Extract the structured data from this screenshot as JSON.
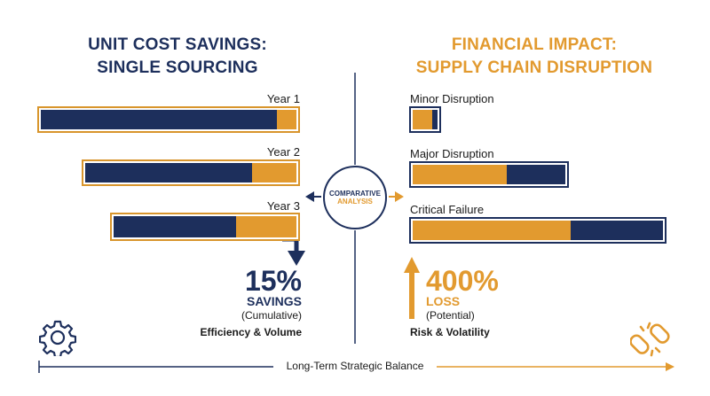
{
  "left": {
    "title_line1": "UNIT COST SAVINGS:",
    "title_line2": "SINGLE SOURCING",
    "bars": [
      {
        "label": "Year 1",
        "navy_fraction": 0.91
      },
      {
        "label": "Year 2",
        "navy_fraction": 0.78
      },
      {
        "label": "Year 3",
        "navy_fraction": 0.65
      }
    ],
    "stat_value": "15%",
    "stat_word": "SAVINGS",
    "stat_note": "(Cumulative)",
    "tagline": "Efficiency & Volume",
    "icon": "gear-icon",
    "color": "#1d2f5c"
  },
  "right": {
    "title_line1": "FINANCIAL IMPACT:",
    "title_line2": "SUPPLY CHAIN DISRUPTION",
    "bars": [
      {
        "label": "Minor Disruption",
        "orange_fraction": 0.7
      },
      {
        "label": "Major Disruption",
        "orange_fraction": 0.61
      },
      {
        "label": "Critical Failure",
        "orange_fraction": 0.62
      }
    ],
    "stat_value": "400%",
    "stat_word": "LOSS",
    "stat_note": "(Potential)",
    "tagline": "Risk & Volatility",
    "icon": "broken-chain-icon",
    "color": "#e29a2f"
  },
  "center": {
    "line1": "COMPARATIVE",
    "line2": "ANALYSIS"
  },
  "footer": {
    "label": "Long-Term Strategic Balance"
  }
}
